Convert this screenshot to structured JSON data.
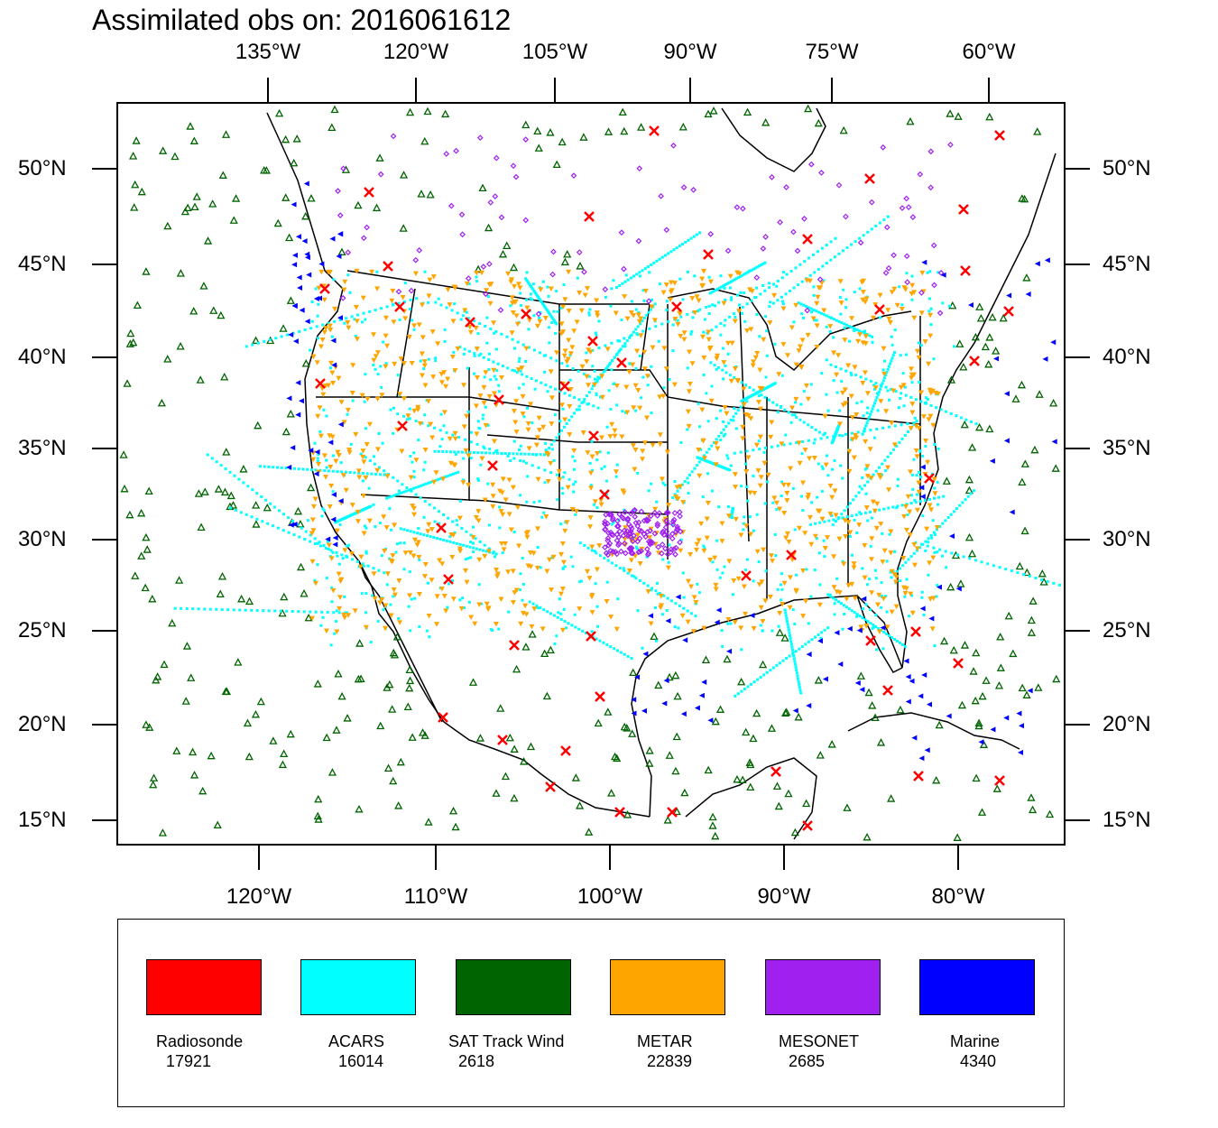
{
  "title": "Assimilated obs on: 2016061612",
  "top_axis_labels": [
    "135°W",
    "120°W",
    "105°W",
    "90°W",
    "75°W",
    "60°W"
  ],
  "bottom_axis_labels": [
    "120°W",
    "110°W",
    "100°W",
    "90°W",
    "80°W"
  ],
  "left_axis_labels": [
    "50°N",
    "45°N",
    "40°N",
    "35°N",
    "30°N",
    "25°N",
    "20°N",
    "15°N"
  ],
  "right_axis_labels": [
    "50°N",
    "45°N",
    "40°N",
    "35°N",
    "30°N",
    "25°N",
    "20°N",
    "15°N"
  ],
  "legend": [
    {
      "name": "Radiosonde",
      "count": "17921",
      "color": "#ff0000",
      "symbol": "x-mark-icon"
    },
    {
      "name": "ACARS",
      "count": "16014",
      "color": "#00ffff",
      "symbol": "square-dot-icon"
    },
    {
      "name": "SAT Track Wind",
      "count": "2618",
      "color": "#006400",
      "symbol": "triangle-up-icon"
    },
    {
      "name": "METAR",
      "count": "22839",
      "color": "#ffa500",
      "symbol": "triangle-down-icon"
    },
    {
      "name": "MESONET",
      "count": "2685",
      "color": "#a020f0",
      "symbol": "diamond-icon"
    },
    {
      "name": "Marine",
      "count": "4340",
      "color": "#0000ff",
      "symbol": "triangle-left-icon"
    }
  ]
}
